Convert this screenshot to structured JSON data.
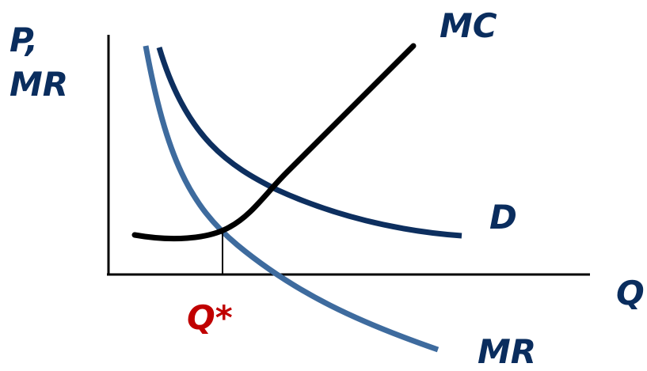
{
  "labels": {
    "y_axis_line1": "P,",
    "y_axis_line2": "MR",
    "x_axis": "Q",
    "mc": "MC",
    "demand": "D",
    "mr": "MR",
    "q_star": "Q*"
  },
  "colors": {
    "label_navy": "#0a2d5e",
    "q_star": "#c00000",
    "demand_curve": "#0d2f5f",
    "mr_curve": "#3e6b9e",
    "mc_curve": "#000000",
    "axes": "#000000"
  }
}
